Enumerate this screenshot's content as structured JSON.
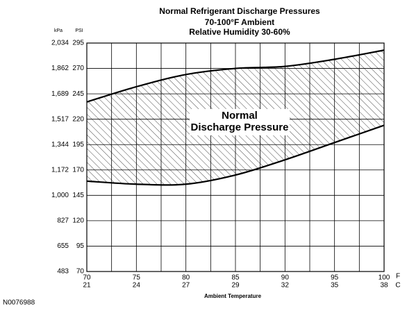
{
  "chart_data": {
    "type": "band",
    "title": "Normal  Refrigerant  Discharge  Pressures",
    "subtitle": [
      "70-100°F Ambient",
      "Relative Humidity 30-60%"
    ],
    "annotation": [
      "Normal",
      "Discharge Pressure"
    ],
    "x_label": "Ambient Temperature",
    "x_unit": "F",
    "x2_unit": "C",
    "y_unit": "PSI",
    "y2_unit": "kPa",
    "figure_id": "N0076988",
    "x": [
      70,
      75,
      80,
      85,
      90,
      95,
      100
    ],
    "upper": [
      237,
      252,
      264,
      270,
      272,
      279,
      288
    ],
    "lower": [
      159,
      156,
      156,
      165,
      180,
      197,
      214
    ],
    "color": "#000000",
    "xlim": [
      70,
      100
    ],
    "xticks": [
      70,
      75,
      80,
      85,
      90,
      95,
      100
    ],
    "x2ticks": [
      {
        "value": 70,
        "label": "21"
      },
      {
        "value": 75,
        "label": "24"
      },
      {
        "value": 80,
        "label": "27"
      },
      {
        "value": 85,
        "label": "29"
      },
      {
        "value": 90,
        "label": "32"
      },
      {
        "value": 95,
        "label": "35"
      },
      {
        "value": 100,
        "label": "38"
      }
    ],
    "minor_xgrid": [
      72.5,
      77.5,
      82.5,
      87.5,
      92.5,
      97.5
    ],
    "ylim": [
      70,
      295
    ],
    "yticks": [
      70,
      95,
      120,
      145,
      170,
      195,
      220,
      245,
      270,
      295
    ],
    "y2lim": [
      483,
      2034
    ],
    "y2ticks": [
      483,
      655,
      827,
      {
        "value": 1000,
        "label": "1,000"
      },
      {
        "value": 1172,
        "label": "1,172"
      },
      {
        "value": 1344,
        "label": "1,344"
      },
      {
        "value": 1517,
        "label": "1,517"
      },
      {
        "value": 1689,
        "label": "1,689"
      },
      {
        "value": 1862,
        "label": "1,862"
      },
      {
        "value": 2034,
        "label": "2,034"
      }
    ],
    "grid": true
  }
}
